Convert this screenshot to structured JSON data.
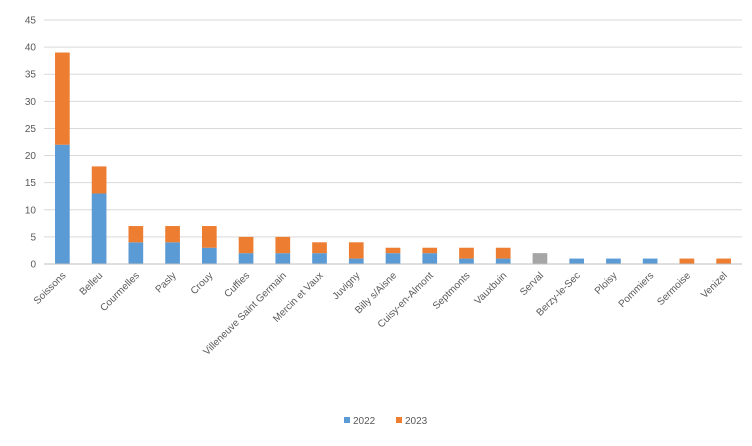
{
  "chart_data": {
    "type": "bar",
    "stacked": true,
    "title": "",
    "xlabel": "",
    "ylabel": "",
    "ylim": [
      0,
      45
    ],
    "yticks": [
      0,
      5,
      10,
      15,
      20,
      25,
      30,
      35,
      40,
      45
    ],
    "grid": true,
    "legend_position": "bottom",
    "categories": [
      "Soissons",
      "Belleu",
      "Courmelles",
      "Pasly",
      "Crouy",
      "Cuffies",
      "Villeneuve Saint Germain",
      "Mercin et Vaux",
      "Juvigny",
      "Billy s/Aisne",
      "Cuisy-en-Almont",
      "Septmonts",
      "Vauxbuin",
      "Serval",
      "Berzy-le-Sec",
      "Ploisy",
      "Pommiers",
      "Sermoise",
      "Venizel"
    ],
    "series": [
      {
        "name": "2022",
        "color": "#5b9bd5",
        "values": [
          22,
          13,
          4,
          4,
          3,
          2,
          2,
          2,
          1,
          2,
          2,
          1,
          1,
          0,
          1,
          1,
          1,
          0,
          0
        ]
      },
      {
        "name": "2023",
        "color": "#ed7d31",
        "values": [
          17,
          5,
          3,
          3,
          4,
          3,
          3,
          2,
          3,
          1,
          1,
          2,
          2,
          0,
          0,
          0,
          0,
          1,
          1
        ]
      },
      {
        "name": "",
        "color": "#a5a5a5",
        "values": [
          0,
          0,
          0,
          0,
          0,
          0,
          0,
          0,
          0,
          0,
          0,
          0,
          0,
          2,
          0,
          0,
          0,
          0,
          0
        ]
      }
    ]
  }
}
